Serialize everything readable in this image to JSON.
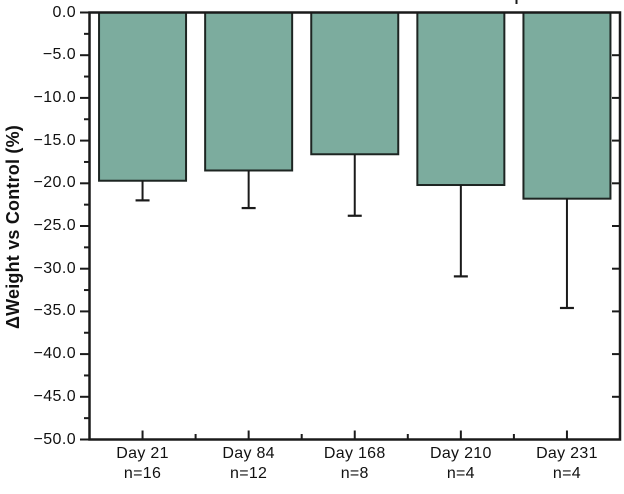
{
  "chart_data": {
    "type": "bar",
    "title": "",
    "xlabel": "",
    "ylabel": "ΔWeight vs Control (%)",
    "ylim": [
      -50,
      0
    ],
    "y_major_tick_step": 5,
    "y_minor_tick_step": 2.5,
    "grid": false,
    "legend": null,
    "orientation": "vertical-negative",
    "error_bars": "lower-only",
    "categories": [
      "Day 21",
      "Day 84",
      "Day 168",
      "Day 210",
      "Day 231"
    ],
    "n_labels": [
      "n=16",
      "n=12",
      "n=8",
      "n=4",
      "n=4"
    ],
    "values": [
      -19.7,
      -18.5,
      -16.6,
      -20.2,
      -21.8
    ],
    "error_minus": [
      2.3,
      4.4,
      7.2,
      10.7,
      12.8
    ],
    "y_ticks": [
      {
        "value": 0,
        "label": "0.0"
      },
      {
        "value": -5,
        "label": "−5.0"
      },
      {
        "value": -10,
        "label": "−10.0"
      },
      {
        "value": -15,
        "label": "−15.0"
      },
      {
        "value": -20,
        "label": "−20.0"
      },
      {
        "value": -25,
        "label": "−25.0"
      },
      {
        "value": -30,
        "label": "−30.0"
      },
      {
        "value": -35,
        "label": "−35.0"
      },
      {
        "value": -40,
        "label": "−40.0"
      },
      {
        "value": -45,
        "label": "−45.0"
      },
      {
        "value": -50,
        "label": "−50.0"
      }
    ],
    "colors": {
      "bar_fill": "#7cac9e",
      "bar_edge": "#1d2522",
      "axis": "#1a1a1a",
      "text": "#111111",
      "background": "#ffffff"
    }
  }
}
